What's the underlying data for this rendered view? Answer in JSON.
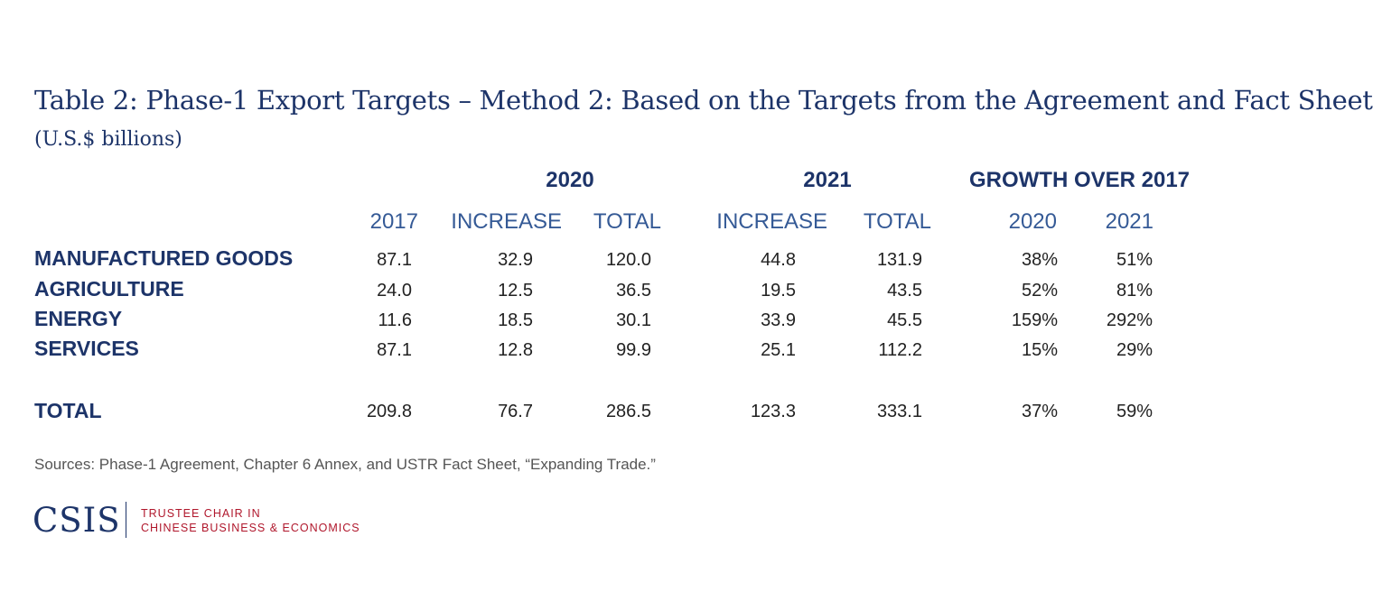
{
  "title": "Table 2: Phase-1 Export Targets – Method 2: Based on the Targets from the Agreement and Fact Sheet",
  "subtitle": "(U.S.$ billions)",
  "group_headers": [
    "2020",
    "2021",
    "GROWTH OVER 2017"
  ],
  "column_headers": [
    "2017",
    "INCREASE",
    "TOTAL",
    "INCREASE",
    "TOTAL",
    "2020",
    "2021"
  ],
  "rows": [
    {
      "label": "MANUFACTURED GOODS",
      "values": [
        "87.1",
        "32.9",
        "120.0",
        "44.8",
        "131.9",
        "38%",
        "51%"
      ]
    },
    {
      "label": "AGRICULTURE",
      "values": [
        "24.0",
        "12.5",
        "36.5",
        "19.5",
        "43.5",
        "52%",
        "81%"
      ]
    },
    {
      "label": "ENERGY",
      "values": [
        "11.6",
        "18.5",
        "30.1",
        "33.9",
        "45.5",
        "159%",
        "292%"
      ]
    },
    {
      "label": "SERVICES",
      "values": [
        "87.1",
        "12.8",
        "99.9",
        "25.1",
        "112.2",
        "15%",
        "29%"
      ]
    }
  ],
  "total_row": {
    "label": "TOTAL",
    "values": [
      "209.8",
      "76.7",
      "286.5",
      "123.3",
      "333.1",
      "37%",
      "59%"
    ]
  },
  "sources": "Sources: Phase-1 Agreement, Chapter 6 Annex, and USTR Fact Sheet, “Expanding Trade.”",
  "logo": {
    "text": "CSIS",
    "chair_line1": "TRUSTEE CHAIR IN",
    "chair_line2": "CHINESE BUSINESS & ECONOMICS"
  },
  "colors": {
    "navy": "#1d3469",
    "header_blue": "#355a96",
    "red": "#b0172c"
  }
}
